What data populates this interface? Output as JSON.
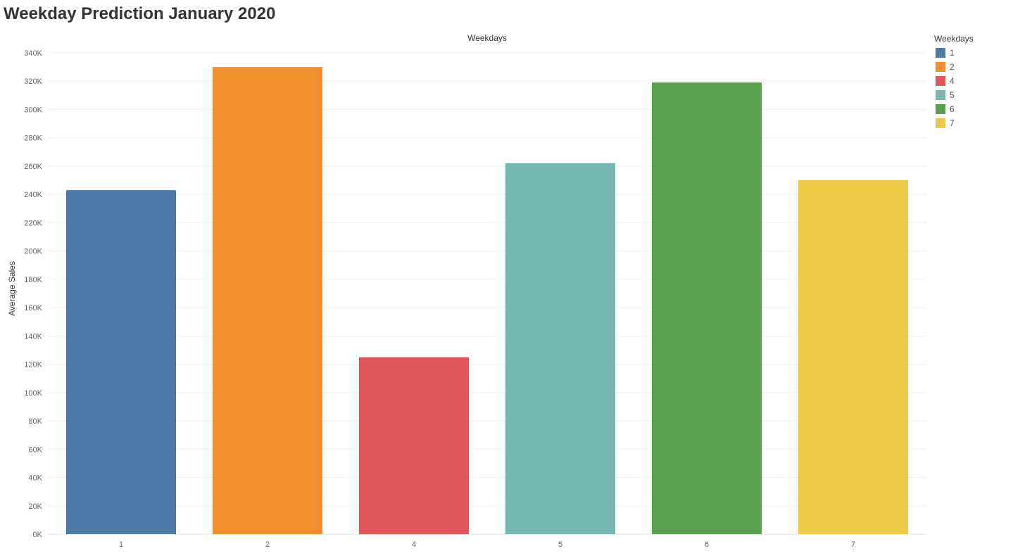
{
  "title": "Weekday Prediction January 2020",
  "chart_data": {
    "type": "bar",
    "top_axis_label": "Weekdays",
    "ylabel": "Average Sales",
    "categories": [
      "1",
      "2",
      "4",
      "5",
      "6",
      "7"
    ],
    "values": [
      243000,
      330000,
      125000,
      262000,
      319000,
      250000
    ],
    "colors": [
      "#4e79a7",
      "#f28e2b",
      "#e15759",
      "#76b7b2",
      "#59a14f",
      "#edc948"
    ],
    "ylim": [
      0,
      340000
    ],
    "yticks": [
      0,
      20000,
      40000,
      60000,
      80000,
      100000,
      120000,
      140000,
      160000,
      180000,
      200000,
      220000,
      240000,
      260000,
      280000,
      300000,
      320000,
      340000
    ],
    "ytick_labels": [
      "0K",
      "20K",
      "40K",
      "60K",
      "80K",
      "100K",
      "120K",
      "140K",
      "160K",
      "180K",
      "200K",
      "220K",
      "240K",
      "260K",
      "280K",
      "300K",
      "320K",
      "340K"
    ],
    "grid": true,
    "legend": {
      "title": "Weekdays",
      "placement": "right",
      "items": [
        "1",
        "2",
        "4",
        "5",
        "6",
        "7"
      ]
    }
  }
}
